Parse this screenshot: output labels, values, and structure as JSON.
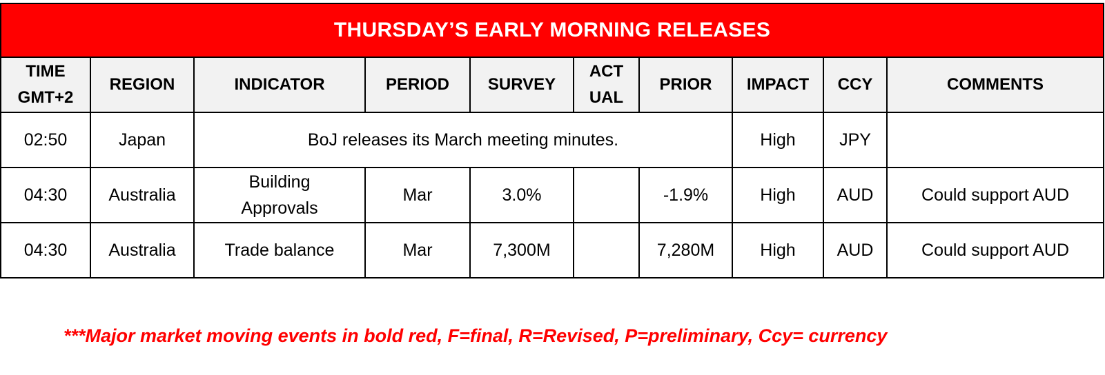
{
  "title": "THURSDAY’S EARLY MORNING RELEASES",
  "headers": {
    "time_line1": "TIME",
    "time_line2": "GMT+2",
    "region": "REGION",
    "indicator": "INDICATOR",
    "period": "PERIOD",
    "survey": "SURVEY",
    "actual_line1": "ACT",
    "actual_line2": "UAL",
    "prior": "PRIOR",
    "impact": "IMPACT",
    "ccy": "CCY",
    "comments": "COMMENTS"
  },
  "rows": [
    {
      "time": "02:50",
      "region": "Japan",
      "merged_text": "BoJ releases its March meeting minutes.",
      "impact": "High",
      "ccy": "JPY",
      "comments": ""
    },
    {
      "time": "04:30",
      "region": "Australia",
      "indicator_line1": "Building",
      "indicator_line2": "Approvals",
      "period": "Mar",
      "survey": "3.0%",
      "actual": "",
      "prior": "-1.9%",
      "impact": "High",
      "ccy": "AUD",
      "comments": "Could support AUD"
    },
    {
      "time": "04:30",
      "region": "Australia",
      "indicator": "Trade balance",
      "period": "Mar",
      "survey": "7,300M",
      "actual": "",
      "prior": "7,280M",
      "impact": "High",
      "ccy": "AUD",
      "comments": "Could support AUD"
    }
  ],
  "footnote": "***Major market moving events in bold red, F=final, R=Revised, P=preliminary, Ccy= currency",
  "colors": {
    "title_background": "#ff0000",
    "title_text": "#ffffff",
    "header_background": "#f2f2f2",
    "footnote_text": "#ff0000"
  }
}
